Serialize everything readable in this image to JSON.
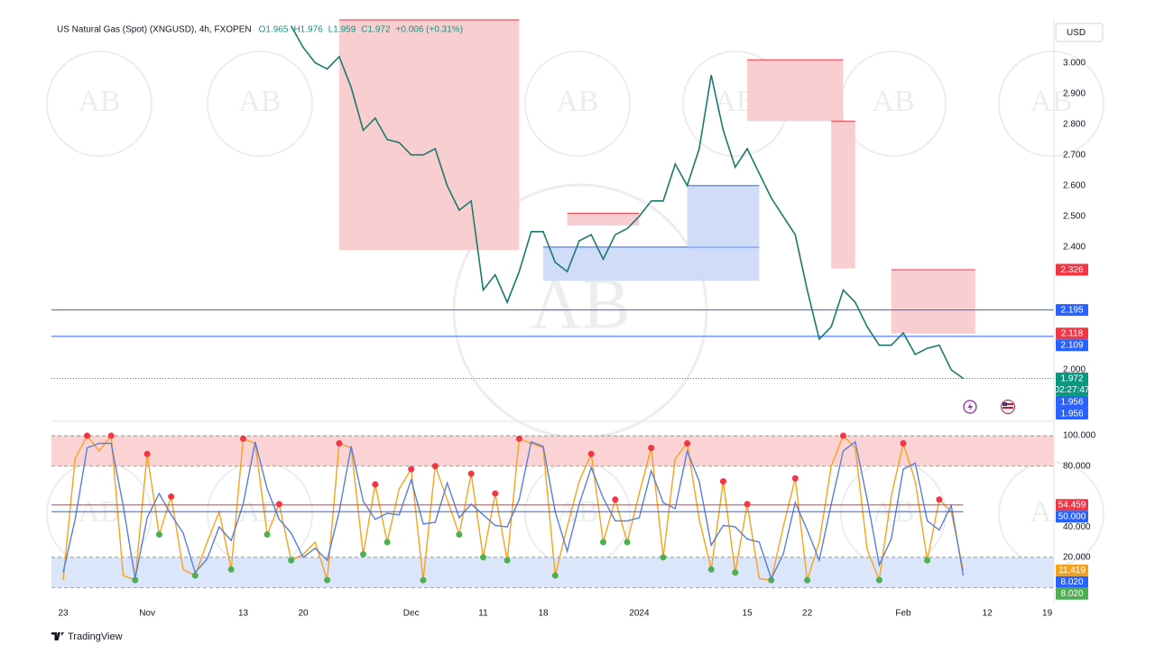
{
  "brand": "TradingView",
  "watermark": "AB",
  "chart_data": [
    {
      "type": "line",
      "title": "US Natural Gas (Spot) (XNGUSD), 4h, FXOPEN",
      "legend_values": [
        "O1.965",
        "H1.976",
        "L1.959",
        "C1.972",
        "+0.006 (+0.31%)"
      ],
      "currency": "USD",
      "categories": [
        "23",
        null,
        null,
        null,
        null,
        null,
        null,
        "Nov",
        null,
        null,
        null,
        null,
        null,
        null,
        null,
        "13",
        null,
        null,
        null,
        null,
        "20",
        null,
        null,
        null,
        null,
        null,
        null,
        null,
        null,
        "Dec",
        null,
        null,
        null,
        null,
        null,
        "11",
        null,
        null,
        null,
        null,
        "18",
        null,
        null,
        null,
        null,
        null,
        null,
        null,
        "2024",
        null,
        null,
        null,
        null,
        null,
        null,
        null,
        null,
        "15",
        null,
        null,
        null,
        null,
        "22",
        null,
        null,
        null,
        null,
        null,
        null,
        null,
        "Feb",
        null,
        null,
        null,
        null,
        null,
        null,
        "12",
        null,
        null,
        null,
        null,
        "19",
        null
      ],
      "series": [
        {
          "color": "#1b7a6e",
          "values": [
            null,
            null,
            null,
            null,
            null,
            null,
            null,
            null,
            null,
            null,
            null,
            null,
            null,
            null,
            null,
            null,
            null,
            null,
            null,
            3.12,
            3.05,
            3.0,
            2.98,
            3.02,
            2.92,
            2.78,
            2.82,
            2.75,
            2.74,
            2.7,
            2.7,
            2.72,
            2.6,
            2.52,
            2.55,
            2.26,
            2.31,
            2.22,
            2.32,
            2.45,
            2.45,
            2.35,
            2.32,
            2.42,
            2.44,
            2.36,
            2.44,
            2.46,
            2.5,
            2.55,
            2.55,
            2.67,
            2.6,
            2.72,
            2.96,
            2.78,
            2.66,
            2.72,
            2.64,
            2.56,
            2.5,
            2.44,
            2.26,
            2.1,
            2.14,
            2.26,
            2.22,
            2.14,
            2.08,
            2.08,
            2.12,
            2.05,
            2.07,
            2.08,
            2.0,
            1.972,
            null,
            null,
            null,
            null,
            null,
            null,
            null,
            null
          ]
        }
      ],
      "ylim": [
        1.85,
        3.14
      ],
      "yticks": [
        {
          "value": 2.0,
          "label": "2.000"
        },
        {
          "value": 2.4,
          "label": "2.400"
        },
        {
          "value": 2.5,
          "label": "2.500"
        },
        {
          "value": 2.6,
          "label": "2.600"
        },
        {
          "value": 2.7,
          "label": "2.700"
        },
        {
          "value": 2.8,
          "label": "2.800"
        },
        {
          "value": 2.9,
          "label": "2.900"
        },
        {
          "value": 3.0,
          "label": "3.000"
        }
      ],
      "zones": [
        {
          "start": 23,
          "end": 38,
          "low": 2.39,
          "high": 3.14,
          "color": "#f7c5c8"
        },
        {
          "start": 57,
          "end": 65,
          "low": 2.81,
          "high": 3.01,
          "color": "#f7c5c8"
        },
        {
          "start": 64,
          "end": 66,
          "low": 2.33,
          "high": 2.81,
          "color": "#f7c5c8"
        },
        {
          "start": 69,
          "end": 76,
          "low": 2.118,
          "high": 2.326,
          "color": "#f7c5c8"
        },
        {
          "start": 42,
          "end": 48,
          "low": 2.47,
          "high": 2.51,
          "color": "#f7c5c8"
        },
        {
          "start": 40,
          "end": 58,
          "low": 2.29,
          "high": 2.4,
          "color": "#c8d6f7"
        },
        {
          "start": 52,
          "end": 58,
          "low": 2.4,
          "high": 2.6,
          "color": "#c8d6f7"
        }
      ],
      "levels": [
        {
          "value": 2.326,
          "label": "2.326",
          "color": "#f23645"
        },
        {
          "value": 2.195,
          "label": "2.195",
          "color": "#2962ff",
          "line": true
        },
        {
          "value": 2.118,
          "label": "2.118",
          "color": "#f23645"
        },
        {
          "value": 2.109,
          "label": "2.109",
          "color": "#2962ff",
          "line": true
        },
        {
          "value": 1.972,
          "label": "1.972",
          "color": "#089981",
          "dotted": true,
          "countdown": "02:27:47"
        },
        {
          "value": 1.956,
          "label": "1.956",
          "color": "#2962ff"
        },
        {
          "value": 1.956,
          "label": "1.956",
          "color": "#2962ff"
        }
      ]
    },
    {
      "type": "line",
      "series": [
        {
          "color": "#f7a21b",
          "values": [
            5,
            85,
            100,
            90,
            100,
            8,
            5,
            88,
            35,
            60,
            12,
            8,
            30,
            50,
            12,
            98,
            95,
            35,
            55,
            18,
            22,
            30,
            5,
            95,
            92,
            22,
            68,
            30,
            65,
            78,
            5,
            80,
            58,
            35,
            75,
            20,
            62,
            18,
            98,
            95,
            92,
            8,
            40,
            70,
            88,
            30,
            58,
            30,
            62,
            92,
            20,
            85,
            95,
            45,
            12,
            70,
            10,
            55,
            6,
            5,
            40,
            72,
            5,
            30,
            80,
            100,
            92,
            25,
            5,
            60,
            95,
            70,
            18,
            58,
            50,
            11.419,
            null,
            null,
            null,
            null,
            null,
            null,
            null,
            null
          ]
        },
        {
          "color": "#5b7fd6",
          "values": [
            10,
            45,
            92,
            95,
            95,
            54,
            6,
            46,
            62,
            48,
            36,
            10,
            19,
            40,
            31,
            55,
            96,
            65,
            45,
            36,
            20,
            26,
            18,
            50,
            93,
            57,
            45,
            49,
            48,
            71,
            42,
            43,
            69,
            46,
            55,
            48,
            41,
            40,
            58,
            96,
            93,
            50,
            24,
            55,
            79,
            59,
            44,
            44,
            46,
            77,
            56,
            52,
            90,
            70,
            28,
            41,
            40,
            32,
            30,
            6,
            22,
            56,
            38,
            18,
            55,
            90,
            96,
            58,
            15,
            32,
            78,
            82,
            44,
            38,
            54,
            8.02,
            null,
            null,
            null,
            null,
            null,
            null,
            null,
            null
          ]
        }
      ],
      "ylim": [
        -8,
        103
      ],
      "yticks": [
        {
          "value": 20,
          "label": "20.000"
        },
        {
          "value": 40,
          "label": "40.000"
        },
        {
          "value": 80,
          "label": "80.000"
        },
        {
          "value": 100,
          "label": "100.000"
        }
      ],
      "bands": [
        {
          "from": 80,
          "to": 100,
          "color": "#fbd3d5"
        },
        {
          "from": 0,
          "to": 20,
          "color": "#dce6fb"
        }
      ],
      "levels": [
        {
          "value": 54.459,
          "label": "54.459",
          "color": "#f23645",
          "line": true
        },
        {
          "value": 50,
          "label": "50.000",
          "color": "#2962ff",
          "line": true
        },
        {
          "value": 11.419,
          "label": "11.419",
          "color": "#f7a21b"
        },
        {
          "value": 8.02,
          "label": "8.020",
          "color": "#2962ff"
        },
        {
          "value": 8.02,
          "label": "8.020",
          "color": "#4caf50"
        }
      ]
    }
  ]
}
